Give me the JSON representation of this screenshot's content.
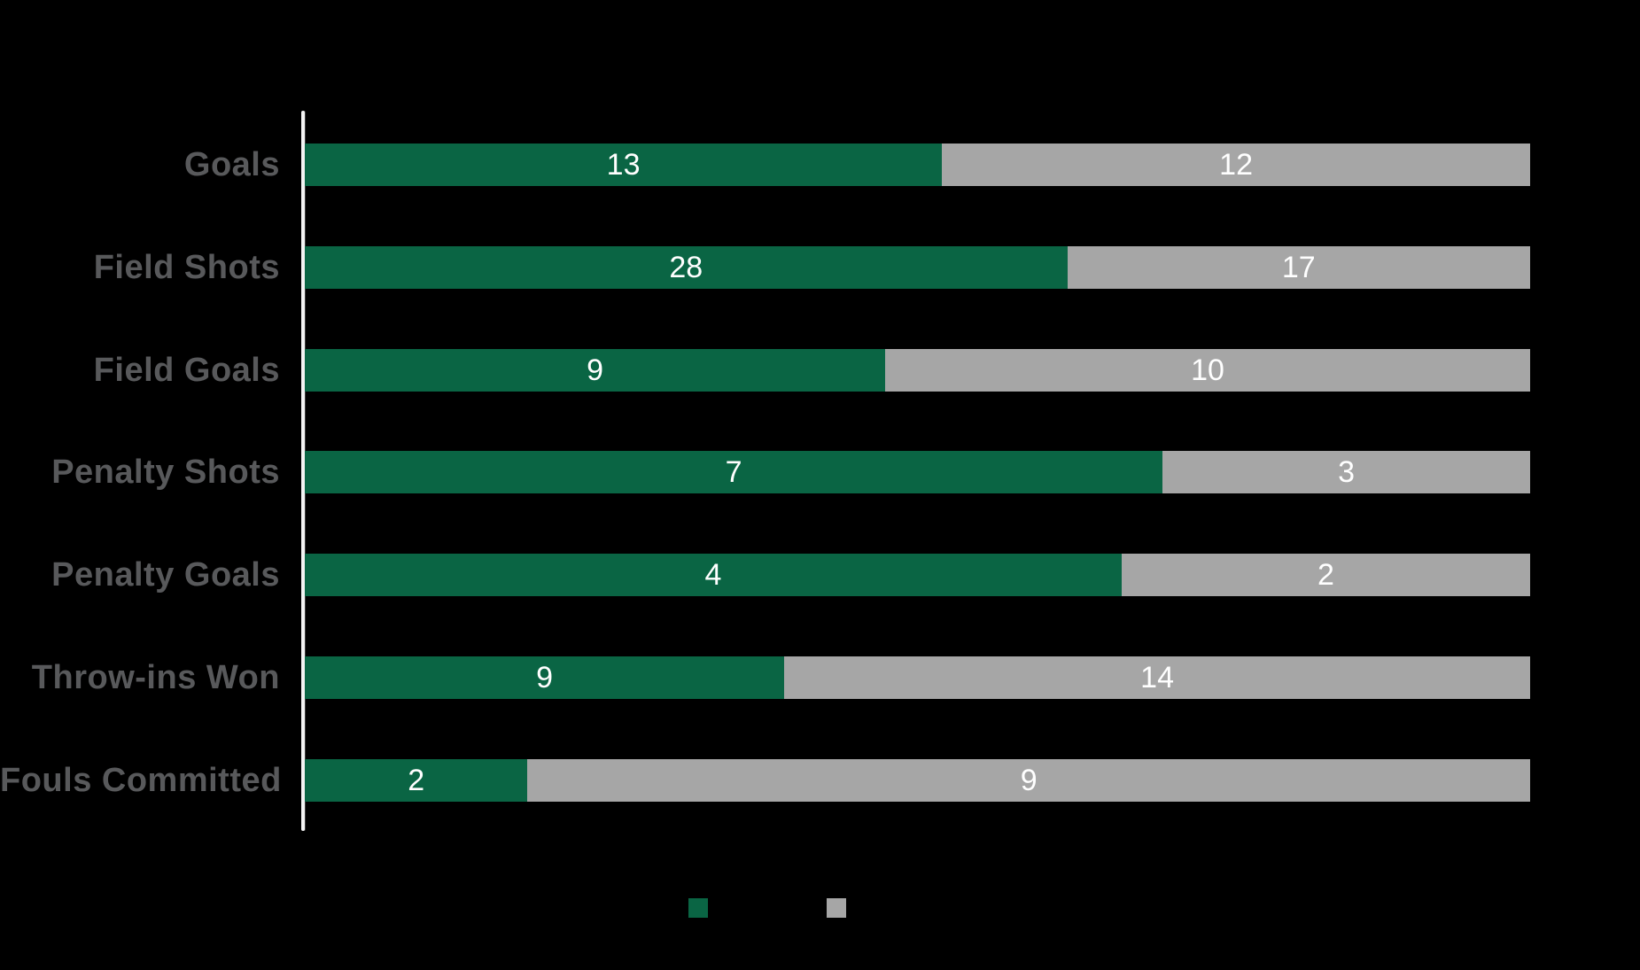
{
  "chart_data": {
    "type": "bar",
    "orientation": "horizontal",
    "stacked": true,
    "normalized_to_full_width": true,
    "title": "",
    "categories": [
      "Goals",
      "Field Shots",
      "Field Goals",
      "Penalty Shots",
      "Penalty Goals",
      "Throw-ins Won",
      "Fouls Committed"
    ],
    "series": [
      {
        "name": "green-series",
        "color": "#0a6544",
        "values": [
          13,
          28,
          9,
          7,
          4,
          9,
          2
        ]
      },
      {
        "name": "gray-series",
        "color": "#a6a6a6",
        "values": [
          12,
          17,
          10,
          3,
          2,
          14,
          9
        ]
      }
    ],
    "value_labels": {
      "green": [
        "13",
        "28",
        "9",
        "7",
        "4",
        "9",
        "2"
      ],
      "gray": [
        "12",
        "17",
        "10",
        "3",
        "2",
        "14",
        "9"
      ]
    },
    "legend": {
      "position": "bottom",
      "entries": [
        {
          "name": "green-series",
          "swatch_color": "#0a6544",
          "label": ""
        },
        {
          "name": "gray-series",
          "swatch_color": "#a6a6a6",
          "label": ""
        }
      ]
    },
    "axis": {
      "y_axis_line_color": "#f4f4f4",
      "gridlines": false,
      "x_tick_labels": []
    }
  },
  "colors": {
    "background": "#000000",
    "green_segment": "#0a6544",
    "gray_segment": "#a6a6a6",
    "category_label": "#58595b",
    "value_label": "#ffffff",
    "axis_line": "#f4f4f4"
  }
}
